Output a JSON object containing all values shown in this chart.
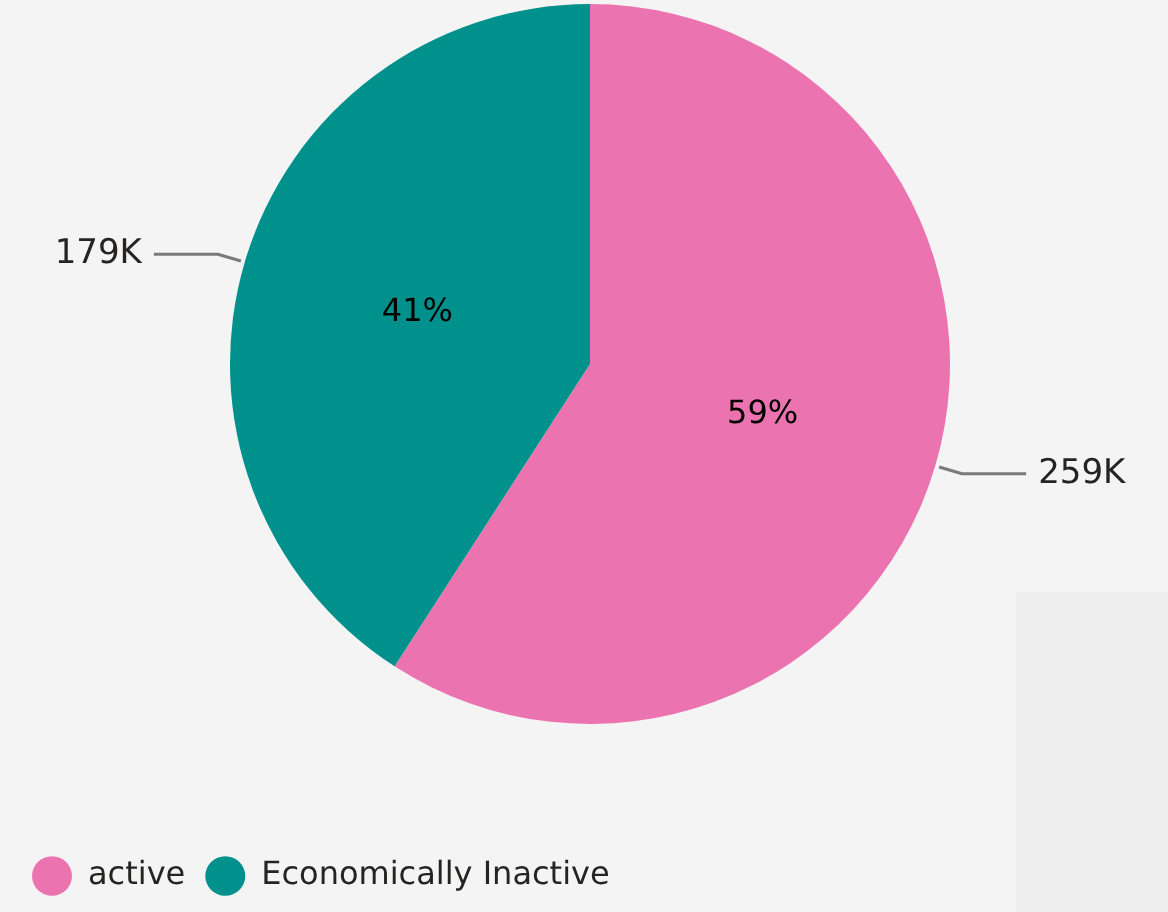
{
  "chart_data": {
    "type": "pie",
    "categories": [
      "active",
      "Economically Inactive"
    ],
    "values": [
      259000,
      179000
    ],
    "colors": [
      "#eb74b0",
      "#01918c"
    ],
    "value_labels": [
      "259K",
      "179K"
    ],
    "annotations": [
      "59%",
      "41%"
    ],
    "legend": "bottom left"
  }
}
